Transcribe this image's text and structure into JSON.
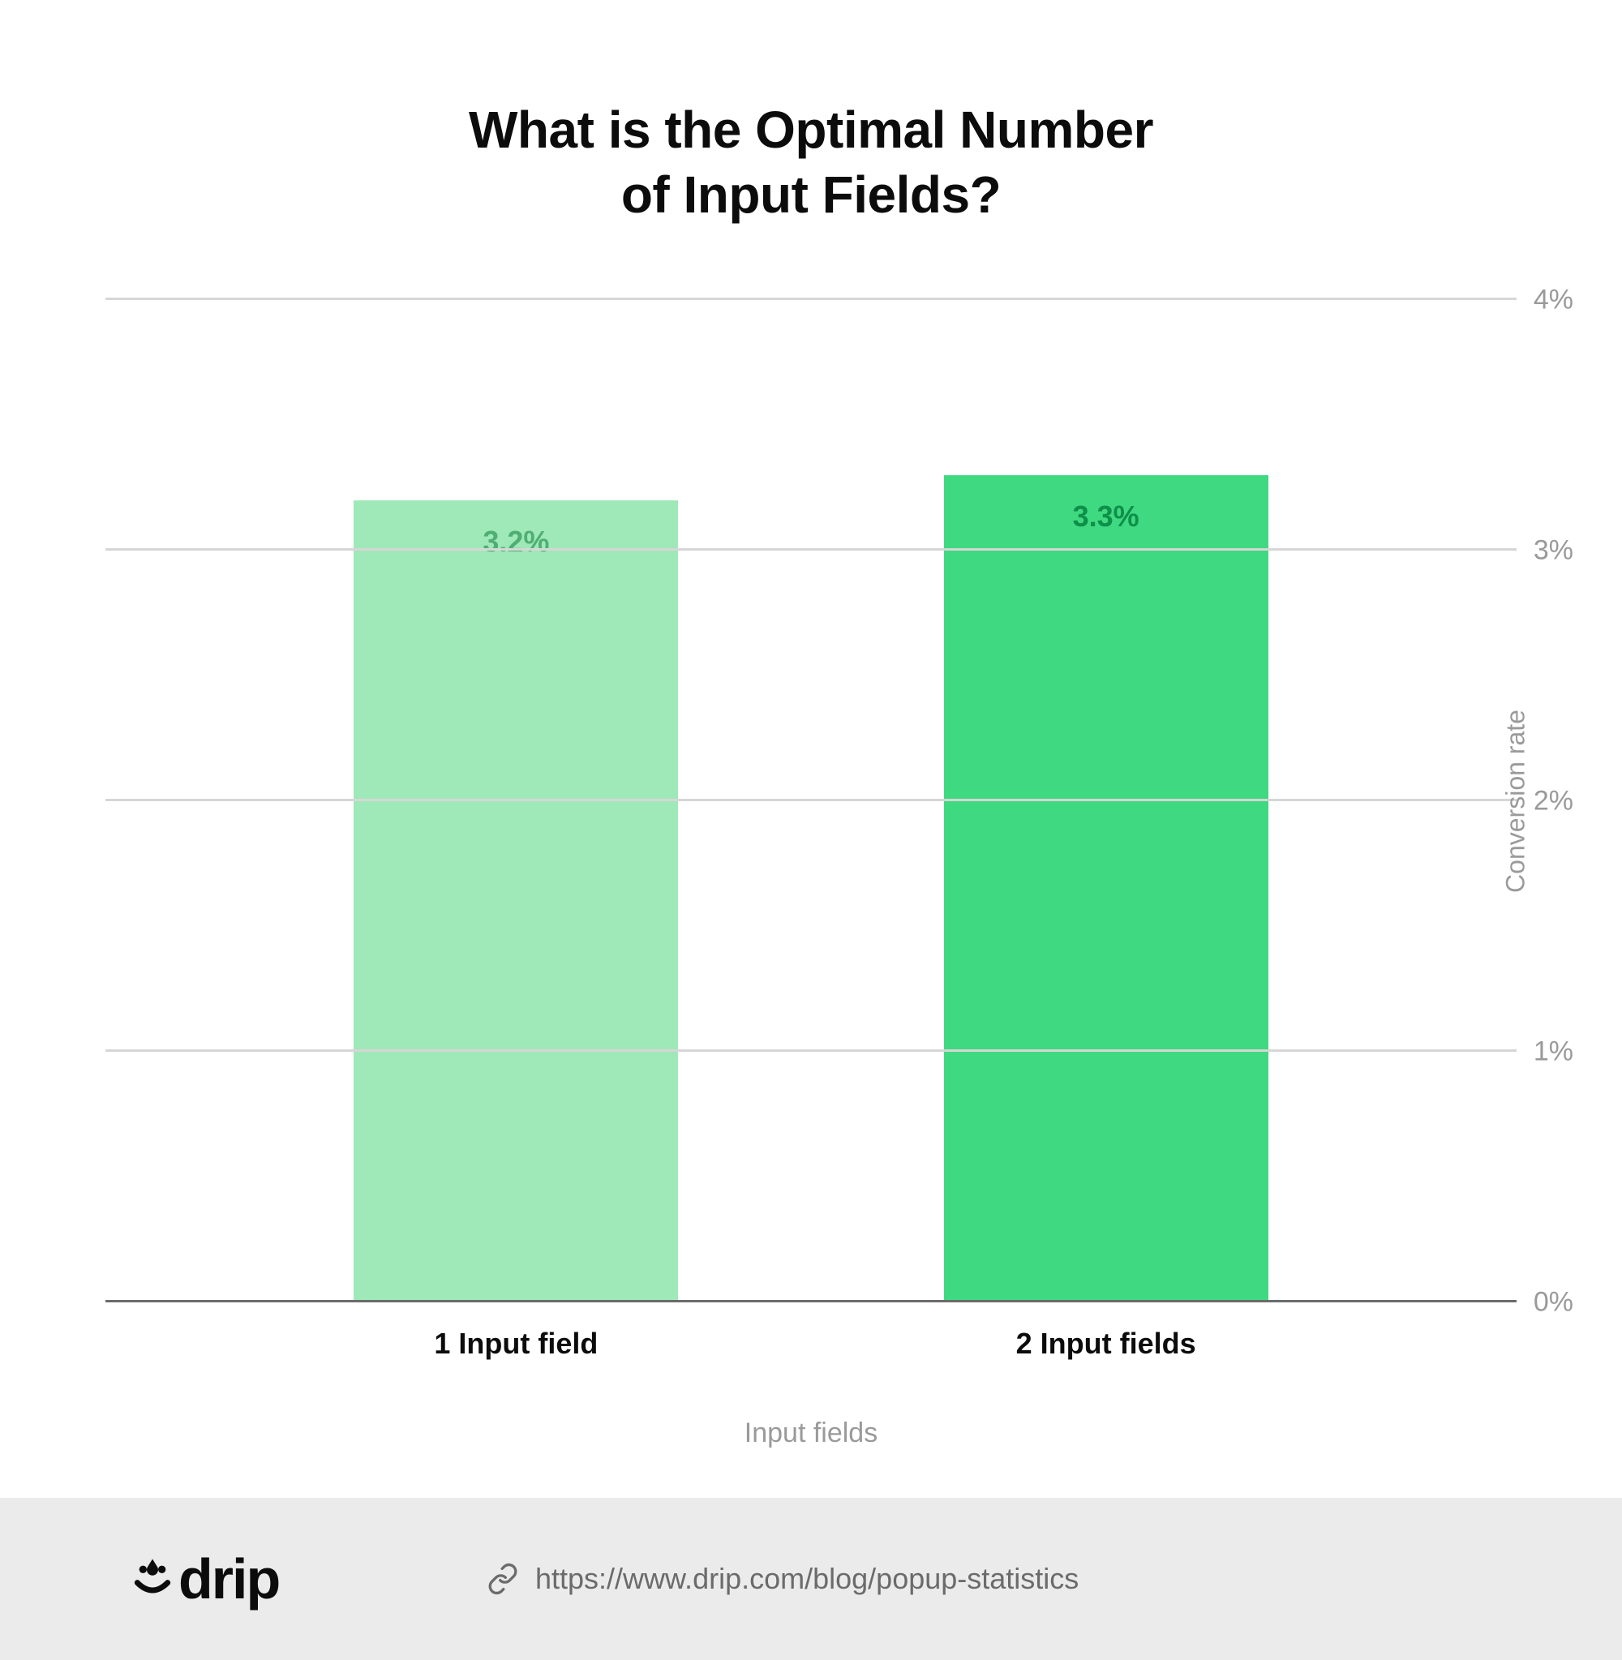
{
  "chart": {
    "type": "bar",
    "title": "What is the Optimal Number\nof Input Fields?",
    "title_fontsize": 64,
    "title_color": "#0c0c0c",
    "background_color": "#ffffff",
    "xaxis": {
      "title": "Input fields",
      "title_color": "#9a9a9a",
      "title_fontsize": 34,
      "categories": [
        "1 Input field",
        "2 Input fields"
      ],
      "tick_fontsize": 36,
      "tick_color": "#0c0c0c"
    },
    "yaxis": {
      "title": "Conversion rate",
      "title_color": "#9a9a9a",
      "title_fontsize": 32,
      "min": 0,
      "max": 4,
      "tick_step": 1,
      "ticks": [
        "0%",
        "1%",
        "2%",
        "3%",
        "4%"
      ],
      "tick_color": "#9a9a9a",
      "tick_fontsize": 34,
      "position": "right"
    },
    "gridlines": {
      "baseline_color": "#6b6b6b",
      "color": "#d6d6d6",
      "width": 3
    },
    "series": [
      {
        "category": "1 Input field",
        "value": 3.2,
        "label": "3.2%",
        "bar_color": "#9fe8b8",
        "label_color": "#4fae73"
      },
      {
        "category": "2 Input fields",
        "value": 3.3,
        "label": "3.3%",
        "bar_color": "#3fd981",
        "label_color": "#0e8f4a"
      }
    ],
    "bar_width_ratio": 0.78
  },
  "footer": {
    "background_color": "#ebebeb",
    "logo_text": "drip",
    "logo_color": "#0c0c0c",
    "source_url": "https://www.drip.com/blog/popup-statistics",
    "source_color": "#6b6b6b",
    "source_fontsize": 36
  }
}
